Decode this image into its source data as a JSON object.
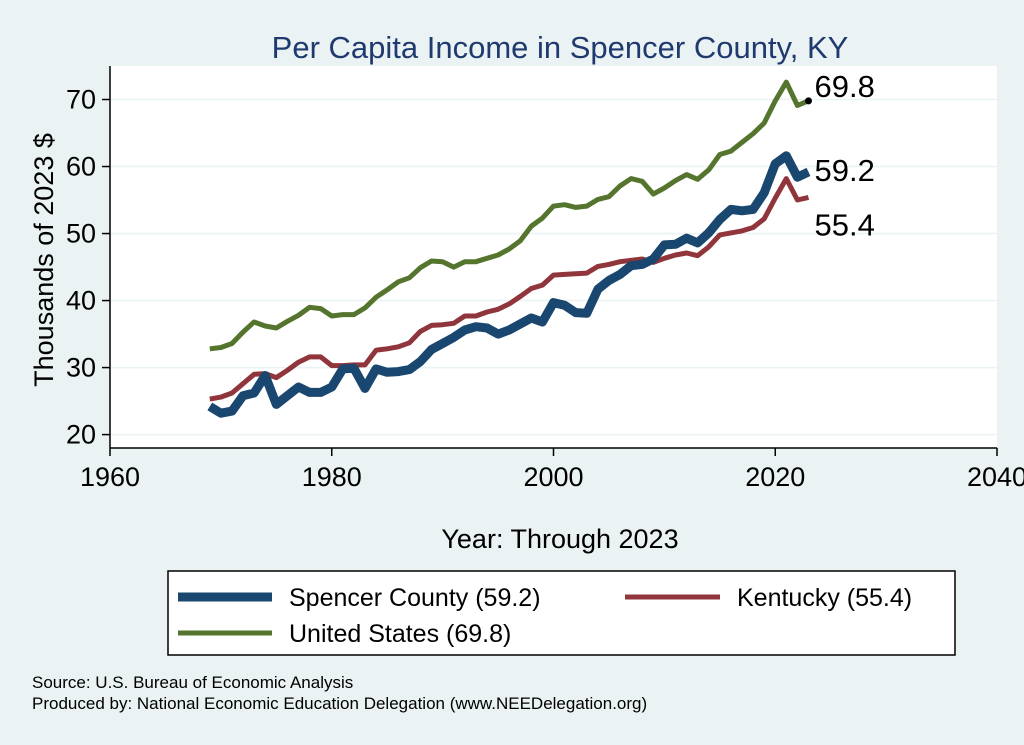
{
  "chart_data": {
    "type": "line",
    "title": "Per Capita Income in Spencer County, KY",
    "xlabel": "Year: Through 2023",
    "ylabel": "Thousands of 2023 $",
    "xlim": [
      1960,
      2040
    ],
    "ylim": [
      18,
      75
    ],
    "xticks": [
      1960,
      1980,
      2000,
      2020,
      2040
    ],
    "yticks": [
      20,
      30,
      40,
      50,
      60,
      70
    ],
    "grid": true,
    "legend_position": "bottom",
    "x": [
      1969,
      1970,
      1971,
      1972,
      1973,
      1974,
      1975,
      1976,
      1977,
      1978,
      1979,
      1980,
      1981,
      1982,
      1983,
      1984,
      1985,
      1986,
      1987,
      1988,
      1989,
      1990,
      1991,
      1992,
      1993,
      1994,
      1995,
      1996,
      1997,
      1998,
      1999,
      2000,
      2001,
      2002,
      2003,
      2004,
      2005,
      2006,
      2007,
      2008,
      2009,
      2010,
      2011,
      2012,
      2013,
      2014,
      2015,
      2016,
      2017,
      2018,
      2019,
      2020,
      2021,
      2022,
      2023
    ],
    "series": [
      {
        "name": "Spencer County (59.2)",
        "color": "#1a476f",
        "values": [
          24.2,
          23.2,
          23.5,
          25.8,
          26.2,
          28.8,
          24.5,
          25.8,
          27.1,
          26.3,
          26.3,
          27.1,
          29.8,
          29.9,
          26.9,
          29.8,
          29.3,
          29.4,
          29.7,
          30.9,
          32.7,
          33.6,
          34.5,
          35.6,
          36.1,
          35.9,
          35.0,
          35.6,
          36.5,
          37.4,
          36.8,
          39.7,
          39.3,
          38.2,
          38.1,
          41.7,
          43.0,
          43.9,
          45.2,
          45.4,
          46.2,
          48.3,
          48.4,
          49.3,
          48.6,
          50.1,
          52.1,
          53.6,
          53.4,
          53.6,
          56.1,
          60.4,
          61.6,
          58.4,
          59.2
        ]
      },
      {
        "name": "Kentucky (55.4)",
        "color": "#90353b",
        "values": [
          25.3,
          25.6,
          26.2,
          27.6,
          29.0,
          29.1,
          28.5,
          29.6,
          30.8,
          31.6,
          31.6,
          30.3,
          30.3,
          30.4,
          30.4,
          32.6,
          32.8,
          33.1,
          33.7,
          35.4,
          36.3,
          36.4,
          36.6,
          37.7,
          37.7,
          38.3,
          38.7,
          39.5,
          40.6,
          41.8,
          42.3,
          43.8,
          43.9,
          44.0,
          44.1,
          45.1,
          45.4,
          45.8,
          46.0,
          46.2,
          45.7,
          46.3,
          46.8,
          47.1,
          46.7,
          48.0,
          49.8,
          50.1,
          50.4,
          50.9,
          52.2,
          55.3,
          58.2,
          55.0,
          55.4
        ]
      },
      {
        "name": "United States (69.8)",
        "color": "#55752f",
        "values": [
          32.8,
          33.0,
          33.6,
          35.3,
          36.8,
          36.2,
          35.9,
          36.9,
          37.8,
          39.0,
          38.8,
          37.7,
          37.9,
          37.9,
          38.9,
          40.5,
          41.6,
          42.8,
          43.4,
          44.9,
          45.9,
          45.8,
          45.0,
          45.8,
          45.8,
          46.3,
          46.8,
          47.7,
          48.9,
          51.1,
          52.3,
          54.1,
          54.3,
          53.9,
          54.1,
          55.1,
          55.5,
          57.1,
          58.2,
          57.8,
          55.9,
          56.8,
          57.9,
          58.8,
          58.1,
          59.5,
          61.8,
          62.3,
          63.6,
          64.9,
          66.5,
          69.8,
          72.6,
          69.1,
          69.8
        ]
      }
    ],
    "end_labels": [
      {
        "series": 2,
        "text": "69.8",
        "marker": true
      },
      {
        "series": 0,
        "text": "59.2",
        "marker": false
      },
      {
        "series": 1,
        "text": "55.4",
        "marker": false
      }
    ]
  },
  "source_lines": [
    "Source: U.S. Bureau of Economic Analysis",
    "Produced by: National Economic Education Delegation (www.NEEDelegation.org)"
  ],
  "colors": {
    "background": "#eaf2f3",
    "plot_area": "#ffffff",
    "title": "#1e3a6e"
  }
}
